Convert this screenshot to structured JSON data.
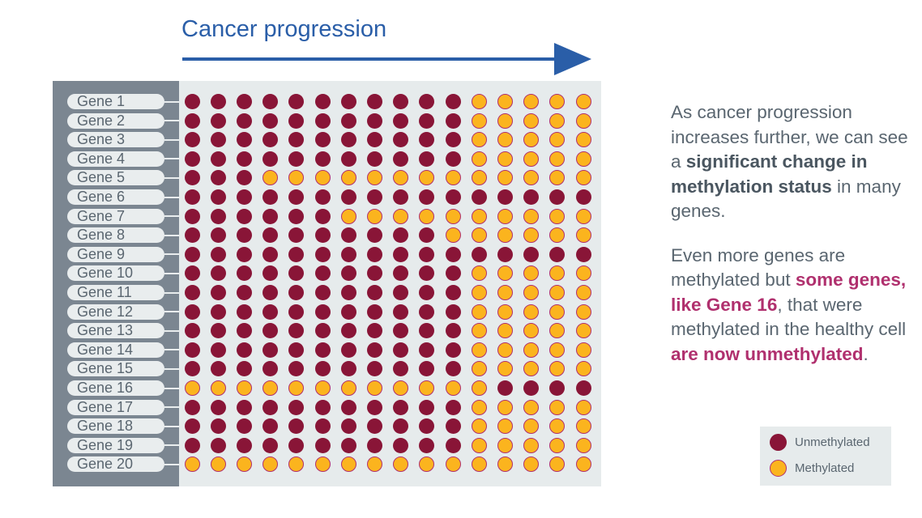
{
  "title": "Cancer progression",
  "genes": [
    "Gene 1",
    "Gene 2",
    "Gene 3",
    "Gene 4",
    "Gene 5",
    "Gene 6",
    "Gene 7",
    "Gene 8",
    "Gene 9",
    "Gene 10",
    "Gene 11",
    "Gene 12",
    "Gene 13",
    "Gene 14",
    "Gene 15",
    "Gene 16",
    "Gene 17",
    "Gene 18",
    "Gene 19",
    "Gene 20"
  ],
  "status_rows": [
    "UUUUUUUUUUUMMMMM",
    "UUUUUUUUUUUMMMMM",
    "UUUUUUUUUUUMMMMM",
    "UUUUUUUUUUUMMMMM",
    "UUUMMMMMMMMMMMMM",
    "UUUUUUUUUUUUUUUU",
    "UUUUUUMMMMMMMMMM",
    "UUUUUUUUUUMMMMMM",
    "UUUUUUUUUUUUUUUU",
    "UUUUUUUUUUUMMMMM",
    "UUUUUUUUUUUMMMMM",
    "UUUUUUUUUUUMMMMM",
    "UUUUUUUUUUUMMMMM",
    "UUUUUUUUUUUMMMMM",
    "UUUUUUUUUUUMMMMM",
    "MMMMMMMMMMMMUUUU",
    "UUUUUUUUUUUMMMMM",
    "UUUUUUUUUUUMMMMM",
    "UUUUUUUUUUUMMMMM",
    "MMMMMMMMMMMMMMMM"
  ],
  "text": {
    "p1a": "As cancer progression increases further, we can see a ",
    "p1b": "significant change in methylation status",
    "p1c": " in many genes.",
    "p2a": "Even more genes are methylated but ",
    "p2b": "some genes, like Gene 16",
    "p2c": ", that were methylated in the healthy cell ",
    "p2d": "are now unmethylated",
    "p2e": "."
  },
  "legend": {
    "unmethylated": "Unmethylated",
    "methylated": "Methylated"
  },
  "colors": {
    "unmethylated": "#891537",
    "methylated": "#fbb41e",
    "accent": "#2a5ea8"
  }
}
